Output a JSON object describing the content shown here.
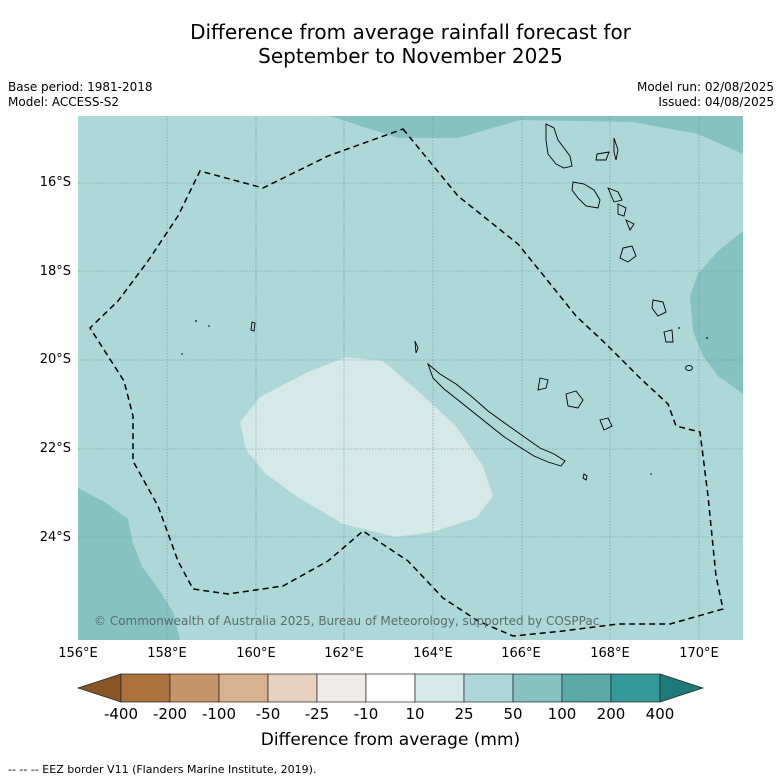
{
  "title": {
    "line1": "Difference from average rainfall forecast for",
    "line2": "September to November 2025"
  },
  "meta": {
    "base_period": "Base period: 1981-2018",
    "model": "Model: ACCESS-S2",
    "model_run": "Model run: 02/08/2025",
    "issued": "Issued: 04/08/2025"
  },
  "map": {
    "copyright": "© Commonwealth of Australia 2025, Bureau of Meteorology, supported by COSPPac",
    "lon_ticks": [
      "156°E",
      "158°E",
      "160°E",
      "162°E",
      "164°E",
      "166°E",
      "168°E",
      "170°E"
    ],
    "lat_ticks": [
      "16°S",
      "18°S",
      "20°S",
      "22°S",
      "24°S"
    ],
    "colors": {
      "band_25_50": "#aed7d7",
      "band_50_100": "#86c2c2",
      "band_10_25": "#d5e9e9",
      "coastline": "#000000"
    }
  },
  "colorbar": {
    "labels": [
      "-400",
      "-200",
      "-100",
      "-50",
      "-25",
      "-10",
      "10",
      "25",
      "50",
      "100",
      "200",
      "400"
    ],
    "colors": [
      "#8a5524",
      "#ad733e",
      "#c59469",
      "#d6b192",
      "#e7d2bf",
      "#efebe8",
      "#ffffff",
      "#d5e9e9",
      "#aed7d7",
      "#86c2c2",
      "#5aaaaa",
      "#339898",
      "#217a7a"
    ],
    "title": "Difference from average (mm)"
  },
  "footer": "--  --  -- EEZ border V11 (Flanders Marine Institute, 2019)."
}
